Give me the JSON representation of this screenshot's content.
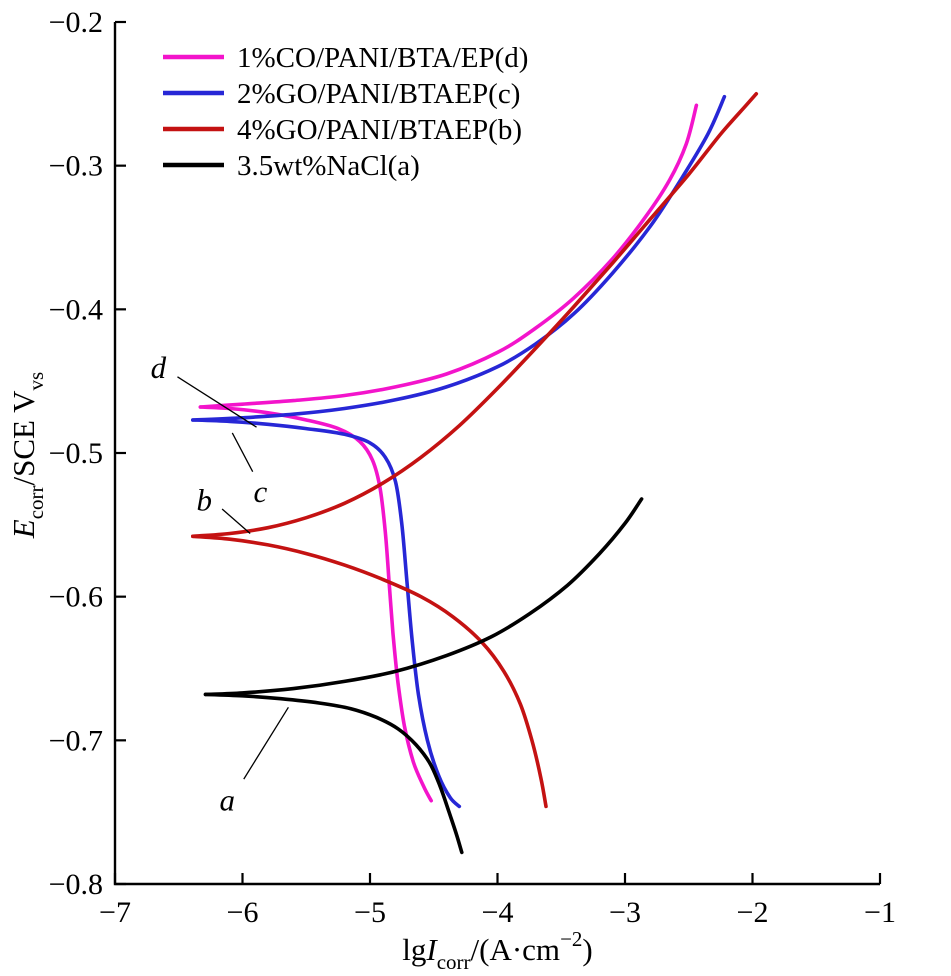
{
  "chart_data": {
    "type": "line",
    "title": "",
    "xlim": [
      -7,
      -1
    ],
    "ylim": [
      -0.8,
      -0.2
    ],
    "x_ticks": [
      -7,
      -6,
      -5,
      -4,
      -3,
      -2,
      -1
    ],
    "x_tick_labels": [
      "−7",
      "−6",
      "−5",
      "−4",
      "−3",
      "−2",
      "−1"
    ],
    "y_ticks": [
      -0.8,
      -0.7,
      -0.6,
      -0.5,
      -0.4,
      -0.3,
      -0.2
    ],
    "y_tick_labels": [
      "−0.8",
      "−0.7",
      "−0.6",
      "−0.5",
      "−0.4",
      "−0.3",
      "−0.2"
    ],
    "grid": false,
    "xlabel_parts": [
      {
        "text": "lg",
        "style": "normal"
      },
      {
        "text": "I",
        "style": "italic"
      },
      {
        "text": "corr",
        "style": "sub"
      },
      {
        "text": "/(A·cm",
        "style": "normal"
      },
      {
        "text": "−2",
        "style": "sup"
      },
      {
        "text": ")",
        "style": "normal"
      }
    ],
    "ylabel_parts": [
      {
        "text": "E",
        "style": "italic"
      },
      {
        "text": "corr",
        "style": "sub"
      },
      {
        "text": "/SCE V",
        "style": "normal"
      },
      {
        "text": "vs",
        "style": "sub"
      }
    ],
    "legend": {
      "position": "top-left"
    },
    "series": [
      {
        "key": "d",
        "name": "1%CO/PANI/BTA/EP(d)",
        "color": "#f314cb",
        "corrosion_potential_V": -0.468,
        "branches": {
          "cathodic": [
            [
              -6.33,
              -0.468
            ],
            [
              -6.1,
              -0.469
            ],
            [
              -5.8,
              -0.472
            ],
            [
              -5.5,
              -0.477
            ],
            [
              -5.25,
              -0.483
            ],
            [
              -5.08,
              -0.492
            ],
            [
              -4.98,
              -0.505
            ],
            [
              -4.92,
              -0.525
            ],
            [
              -4.88,
              -0.555
            ],
            [
              -4.85,
              -0.59
            ],
            [
              -4.82,
              -0.625
            ],
            [
              -4.78,
              -0.66
            ],
            [
              -4.73,
              -0.69
            ],
            [
              -4.66,
              -0.715
            ],
            [
              -4.58,
              -0.732
            ],
            [
              -4.52,
              -0.742
            ]
          ],
          "anodic": [
            [
              -6.33,
              -0.468
            ],
            [
              -6.0,
              -0.466
            ],
            [
              -5.6,
              -0.4635
            ],
            [
              -5.2,
              -0.46
            ],
            [
              -4.8,
              -0.454
            ],
            [
              -4.4,
              -0.445
            ],
            [
              -4.0,
              -0.43
            ],
            [
              -3.7,
              -0.413
            ],
            [
              -3.4,
              -0.392
            ],
            [
              -3.1,
              -0.365
            ],
            [
              -2.85,
              -0.337
            ],
            [
              -2.65,
              -0.31
            ],
            [
              -2.52,
              -0.285
            ],
            [
              -2.44,
              -0.258
            ]
          ]
        }
      },
      {
        "key": "c",
        "name": "2%GO/PANI/BTAEP(c)",
        "color": "#2727d6",
        "corrosion_potential_V": -0.477,
        "branches": {
          "cathodic": [
            [
              -6.39,
              -0.477
            ],
            [
              -6.1,
              -0.478
            ],
            [
              -5.8,
              -0.48
            ],
            [
              -5.5,
              -0.483
            ],
            [
              -5.2,
              -0.487
            ],
            [
              -5.0,
              -0.493
            ],
            [
              -4.88,
              -0.503
            ],
            [
              -4.8,
              -0.52
            ],
            [
              -4.75,
              -0.55
            ],
            [
              -4.71,
              -0.59
            ],
            [
              -4.67,
              -0.63
            ],
            [
              -4.62,
              -0.668
            ],
            [
              -4.55,
              -0.7
            ],
            [
              -4.46,
              -0.725
            ],
            [
              -4.37,
              -0.74
            ],
            [
              -4.3,
              -0.746
            ]
          ],
          "anodic": [
            [
              -6.39,
              -0.477
            ],
            [
              -6.0,
              -0.4755
            ],
            [
              -5.6,
              -0.473
            ],
            [
              -5.2,
              -0.469
            ],
            [
              -4.8,
              -0.463
            ],
            [
              -4.4,
              -0.454
            ],
            [
              -4.0,
              -0.44
            ],
            [
              -3.7,
              -0.424
            ],
            [
              -3.4,
              -0.403
            ],
            [
              -3.1,
              -0.375
            ],
            [
              -2.8,
              -0.342
            ],
            [
              -2.55,
              -0.308
            ],
            [
              -2.35,
              -0.278
            ],
            [
              -2.22,
              -0.252
            ]
          ]
        }
      },
      {
        "key": "b",
        "name": "4%GO/PANI/BTAEP(b)",
        "color": "#c41212",
        "corrosion_potential_V": -0.558,
        "branches": {
          "cathodic": [
            [
              -6.39,
              -0.558
            ],
            [
              -6.1,
              -0.56
            ],
            [
              -5.8,
              -0.564
            ],
            [
              -5.5,
              -0.57
            ],
            [
              -5.2,
              -0.578
            ],
            [
              -4.9,
              -0.588
            ],
            [
              -4.6,
              -0.6
            ],
            [
              -4.35,
              -0.614
            ],
            [
              -4.12,
              -0.632
            ],
            [
              -3.95,
              -0.652
            ],
            [
              -3.82,
              -0.675
            ],
            [
              -3.73,
              -0.7
            ],
            [
              -3.66,
              -0.726
            ],
            [
              -3.62,
              -0.746
            ]
          ],
          "anodic": [
            [
              -6.39,
              -0.558
            ],
            [
              -6.1,
              -0.556
            ],
            [
              -5.8,
              -0.552
            ],
            [
              -5.5,
              -0.545
            ],
            [
              -5.2,
              -0.535
            ],
            [
              -4.9,
              -0.521
            ],
            [
              -4.6,
              -0.503
            ],
            [
              -4.3,
              -0.481
            ],
            [
              -4.0,
              -0.455
            ],
            [
              -3.7,
              -0.427
            ],
            [
              -3.4,
              -0.398
            ],
            [
              -3.1,
              -0.368
            ],
            [
              -2.8,
              -0.337
            ],
            [
              -2.5,
              -0.306
            ],
            [
              -2.25,
              -0.278
            ],
            [
              -2.05,
              -0.258
            ],
            [
              -1.97,
              -0.25
            ]
          ]
        }
      },
      {
        "key": "a",
        "name": "3.5wt%NaCl(a)",
        "color": "#000000",
        "corrosion_potential_V": -0.668,
        "branches": {
          "cathodic": [
            [
              -6.29,
              -0.668
            ],
            [
              -6.0,
              -0.669
            ],
            [
              -5.7,
              -0.671
            ],
            [
              -5.4,
              -0.674
            ],
            [
              -5.15,
              -0.678
            ],
            [
              -4.95,
              -0.684
            ],
            [
              -4.78,
              -0.692
            ],
            [
              -4.64,
              -0.703
            ],
            [
              -4.53,
              -0.716
            ],
            [
              -4.45,
              -0.732
            ],
            [
              -4.38,
              -0.75
            ],
            [
              -4.32,
              -0.766
            ],
            [
              -4.28,
              -0.778
            ]
          ],
          "anodic": [
            [
              -6.29,
              -0.668
            ],
            [
              -6.0,
              -0.667
            ],
            [
              -5.6,
              -0.664
            ],
            [
              -5.2,
              -0.659
            ],
            [
              -4.8,
              -0.652
            ],
            [
              -4.4,
              -0.641
            ],
            [
              -4.05,
              -0.628
            ],
            [
              -3.75,
              -0.612
            ],
            [
              -3.45,
              -0.592
            ],
            [
              -3.2,
              -0.57
            ],
            [
              -3.0,
              -0.549
            ],
            [
              -2.87,
              -0.532
            ]
          ]
        }
      }
    ],
    "annotations": [
      {
        "label": "d",
        "x": -6.66,
        "y": -0.441,
        "line": [
          [
            -6.51,
            -0.447
          ],
          [
            -5.89,
            -0.482
          ]
        ]
      },
      {
        "label": "c",
        "x": -5.86,
        "y": -0.527,
        "line": [
          [
            -6.08,
            -0.486
          ],
          [
            -5.92,
            -0.513
          ]
        ]
      },
      {
        "label": "b",
        "x": -6.3,
        "y": -0.533,
        "line": [
          [
            -6.16,
            -0.539
          ],
          [
            -5.94,
            -0.556
          ]
        ]
      },
      {
        "label": "a",
        "x": -6.12,
        "y": -0.742,
        "line": [
          [
            -5.99,
            -0.727
          ],
          [
            -5.64,
            -0.677
          ]
        ]
      }
    ]
  }
}
